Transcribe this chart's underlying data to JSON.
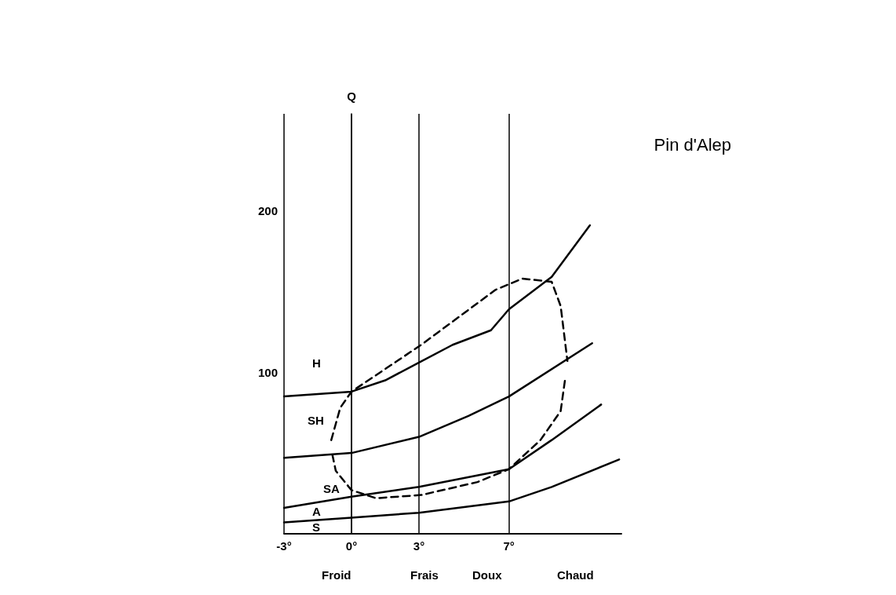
{
  "chart_data": {
    "type": "line",
    "title": "Pin d'Alep",
    "ylabel": "Q",
    "xlim": [
      -3,
      12
    ],
    "ylim": [
      0,
      260
    ],
    "xticks": [
      {
        "value": -3,
        "label": "-3°"
      },
      {
        "value": 0,
        "label": "0°"
      },
      {
        "value": 3,
        "label": "3°"
      },
      {
        "value": 7,
        "label": "7°"
      }
    ],
    "yticks": [
      100,
      200
    ],
    "grid": "x",
    "marker": "none",
    "series": [
      {
        "color": "#000000",
        "x": [
          -3,
          0,
          1.5,
          3,
          4.5,
          6.2,
          7,
          8.9,
          10.6
        ],
        "values": [
          85,
          88,
          95,
          106,
          117,
          126,
          139,
          159,
          191
        ]
      },
      {
        "color": "#000000",
        "x": [
          -3,
          0,
          3,
          5.2,
          7,
          10.7
        ],
        "values": [
          47,
          50,
          60,
          73,
          85,
          118
        ]
      },
      {
        "color": "#000000",
        "x": [
          -3,
          0,
          3,
          7,
          8.9,
          11.1
        ],
        "values": [
          16,
          23,
          29,
          40,
          58,
          80
        ]
      },
      {
        "color": "#000000",
        "x": [
          -3,
          0,
          3,
          7,
          8.9,
          11.9
        ],
        "values": [
          7,
          10,
          13,
          20,
          29,
          46
        ]
      },
      {
        "color": "#000000",
        "line_style": "dashed",
        "x": [
          -0.9,
          -0.5,
          0,
          3.1,
          6.4,
          7.6,
          8.9,
          9.3,
          9.6
        ],
        "values": [
          58,
          78,
          88,
          117,
          151,
          158,
          156,
          141,
          107
        ]
      },
      {
        "color": "#000000",
        "line_style": "dashed",
        "x": [
          -0.85,
          -0.7,
          0,
          1.1,
          3.1,
          5.6,
          7,
          8.4,
          9.3,
          9.5
        ],
        "values": [
          49,
          39,
          27,
          22,
          24,
          32,
          40,
          58,
          76,
          96
        ]
      }
    ],
    "annotations": [
      "H",
      "SH",
      "SA",
      "A",
      "S",
      "Froid",
      "Frais",
      "Doux",
      "Chaud"
    ]
  }
}
